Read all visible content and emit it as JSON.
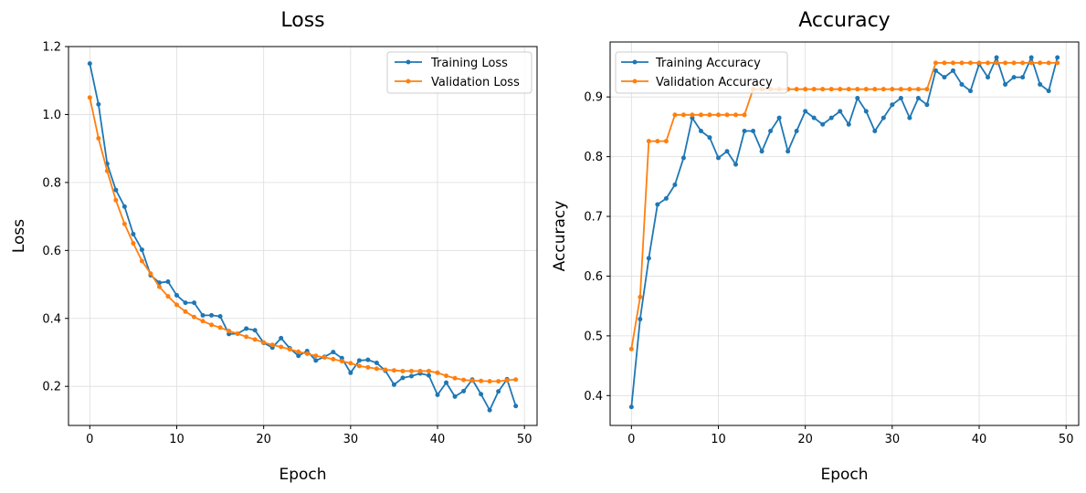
{
  "colors": {
    "training": "#1f77b4",
    "validation": "#ff7f0e",
    "grid": "#dddddd"
  },
  "chart_data": [
    {
      "type": "line",
      "title": "Loss",
      "xlabel": "Epoch",
      "ylabel": "Loss",
      "xlim": [
        -2.45,
        51.45
      ],
      "ylim": [
        0.085,
        1.2
      ],
      "xticks": [
        0,
        10,
        20,
        30,
        40,
        50
      ],
      "yticks": [
        0.2,
        0.4,
        0.6,
        0.8,
        1.0,
        1.2
      ],
      "ytick_decimals": 1,
      "grid": true,
      "legend_position": "top-right",
      "x": [
        0,
        1,
        2,
        3,
        4,
        5,
        6,
        7,
        8,
        9,
        10,
        11,
        12,
        13,
        14,
        15,
        16,
        17,
        18,
        19,
        20,
        21,
        22,
        23,
        24,
        25,
        26,
        27,
        28,
        29,
        30,
        31,
        32,
        33,
        34,
        35,
        36,
        37,
        38,
        39,
        40,
        41,
        42,
        43,
        44,
        45,
        46,
        47,
        48,
        49
      ],
      "series": [
        {
          "name": "Training Loss",
          "color_key": "training",
          "values": [
            1.15,
            1.03,
            0.855,
            0.778,
            0.729,
            0.648,
            0.602,
            0.527,
            0.505,
            0.508,
            0.468,
            0.446,
            0.446,
            0.409,
            0.409,
            0.406,
            0.354,
            0.355,
            0.37,
            0.365,
            0.328,
            0.314,
            0.342,
            0.312,
            0.29,
            0.304,
            0.276,
            0.287,
            0.301,
            0.283,
            0.24,
            0.276,
            0.278,
            0.269,
            0.246,
            0.205,
            0.225,
            0.23,
            0.238,
            0.232,
            0.175,
            0.211,
            0.17,
            0.186,
            0.22,
            0.177,
            0.13,
            0.185,
            0.221,
            0.142
          ]
        },
        {
          "name": "Validation Loss",
          "color_key": "validation",
          "values": [
            1.05,
            0.93,
            0.834,
            0.748,
            0.678,
            0.621,
            0.569,
            0.532,
            0.493,
            0.465,
            0.44,
            0.42,
            0.404,
            0.392,
            0.381,
            0.373,
            0.363,
            0.355,
            0.346,
            0.338,
            0.329,
            0.322,
            0.316,
            0.309,
            0.302,
            0.296,
            0.29,
            0.285,
            0.28,
            0.274,
            0.268,
            0.26,
            0.256,
            0.252,
            0.249,
            0.247,
            0.245,
            0.245,
            0.245,
            0.245,
            0.24,
            0.231,
            0.224,
            0.219,
            0.217,
            0.216,
            0.215,
            0.215,
            0.218,
            0.22
          ]
        }
      ]
    },
    {
      "type": "line",
      "title": "Accuracy",
      "xlabel": "Epoch",
      "ylabel": "Accuracy",
      "xlim": [
        -2.45,
        51.45
      ],
      "ylim": [
        0.35,
        0.992
      ],
      "xticks": [
        0,
        10,
        20,
        30,
        40,
        50
      ],
      "yticks": [
        0.4,
        0.5,
        0.6,
        0.7,
        0.8,
        0.9
      ],
      "ytick_decimals": 1,
      "grid": true,
      "legend_position": "top-left",
      "x": [
        0,
        1,
        2,
        3,
        4,
        5,
        6,
        7,
        8,
        9,
        10,
        11,
        12,
        13,
        14,
        15,
        16,
        17,
        18,
        19,
        20,
        21,
        22,
        23,
        24,
        25,
        26,
        27,
        28,
        29,
        30,
        31,
        32,
        33,
        34,
        35,
        36,
        37,
        38,
        39,
        40,
        41,
        42,
        43,
        44,
        45,
        46,
        47,
        48,
        49
      ],
      "series": [
        {
          "name": "Training Accuracy",
          "color_key": "training",
          "values": [
            0.381,
            0.528,
            0.63,
            0.72,
            0.73,
            0.753,
            0.798,
            0.865,
            0.843,
            0.832,
            0.798,
            0.809,
            0.787,
            0.843,
            0.843,
            0.809,
            0.843,
            0.865,
            0.809,
            0.843,
            0.876,
            0.865,
            0.854,
            0.865,
            0.876,
            0.854,
            0.898,
            0.876,
            0.843,
            0.865,
            0.887,
            0.898,
            0.865,
            0.898,
            0.887,
            0.944,
            0.933,
            0.944,
            0.921,
            0.91,
            0.955,
            0.933,
            0.966,
            0.921,
            0.933,
            0.933,
            0.966,
            0.921,
            0.91,
            0.966
          ]
        },
        {
          "name": "Validation Accuracy",
          "color_key": "validation",
          "values": [
            0.478,
            0.565,
            0.826,
            0.826,
            0.826,
            0.87,
            0.87,
            0.87,
            0.87,
            0.87,
            0.87,
            0.87,
            0.87,
            0.87,
            0.913,
            0.913,
            0.913,
            0.913,
            0.913,
            0.913,
            0.913,
            0.913,
            0.913,
            0.913,
            0.913,
            0.913,
            0.913,
            0.913,
            0.913,
            0.913,
            0.913,
            0.913,
            0.913,
            0.913,
            0.913,
            0.957,
            0.957,
            0.957,
            0.957,
            0.957,
            0.957,
            0.957,
            0.957,
            0.957,
            0.957,
            0.957,
            0.957,
            0.957,
            0.957,
            0.957
          ]
        }
      ]
    }
  ]
}
